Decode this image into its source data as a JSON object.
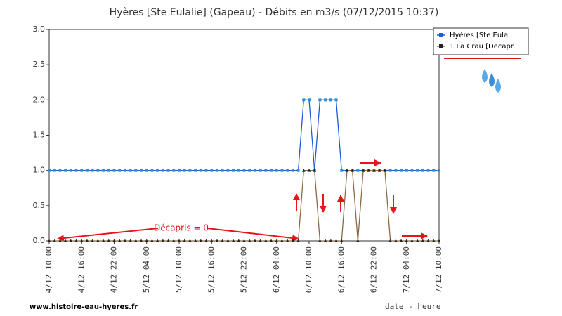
{
  "chart_data": {
    "type": "line",
    "title": "Hyères [Ste Eulalie] (Gapeau) - Débits en m3/s (07/12/2015 10:37)",
    "x_label": "date - heure",
    "source": "www.histoire-eau-hyeres.fr",
    "annotation": "Décapris = 0",
    "x": [
      "4/12 10:00",
      "4/12 11:00",
      "4/12 12:00",
      "4/12 13:00",
      "4/12 14:00",
      "4/12 15:00",
      "4/12 16:00",
      "4/12 17:00",
      "4/12 18:00",
      "4/12 19:00",
      "4/12 20:00",
      "4/12 21:00",
      "4/12 22:00",
      "4/12 23:00",
      "5/12 00:00",
      "5/12 01:00",
      "5/12 02:00",
      "5/12 03:00",
      "5/12 04:00",
      "5/12 05:00",
      "5/12 06:00",
      "5/12 07:00",
      "5/12 08:00",
      "5/12 09:00",
      "5/12 10:00",
      "5/12 11:00",
      "5/12 12:00",
      "5/12 13:00",
      "5/12 14:00",
      "5/12 15:00",
      "5/12 16:00",
      "5/12 17:00",
      "5/12 18:00",
      "5/12 19:00",
      "5/12 20:00",
      "5/12 21:00",
      "5/12 22:00",
      "5/12 23:00",
      "6/12 00:00",
      "6/12 01:00",
      "6/12 02:00",
      "6/12 03:00",
      "6/12 04:00",
      "6/12 05:00",
      "6/12 06:00",
      "6/12 07:00",
      "6/12 08:00",
      "6/12 09:00",
      "6/12 10:00",
      "6/12 11:00",
      "6/12 12:00",
      "6/12 13:00",
      "6/12 14:00",
      "6/12 15:00",
      "6/12 16:00",
      "6/12 17:00",
      "6/12 18:00",
      "6/12 19:00",
      "6/12 20:00",
      "6/12 21:00",
      "6/12 22:00",
      "6/12 23:00",
      "7/12 00:00",
      "7/12 01:00",
      "7/12 02:00",
      "7/12 03:00",
      "7/12 04:00",
      "7/12 05:00",
      "7/12 06:00",
      "7/12 07:00",
      "7/12 08:00",
      "7/12 09:00",
      "7/12 10:00"
    ],
    "series": [
      {
        "name": "Hyères [Ste Eulal",
        "color": "#1e5bd8",
        "marker_color": "#2a8fcf",
        "values": [
          1,
          1,
          1,
          1,
          1,
          1,
          1,
          1,
          1,
          1,
          1,
          1,
          1,
          1,
          1,
          1,
          1,
          1,
          1,
          1,
          1,
          1,
          1,
          1,
          1,
          1,
          1,
          1,
          1,
          1,
          1,
          1,
          1,
          1,
          1,
          1,
          1,
          1,
          1,
          1,
          1,
          1,
          1,
          1,
          1,
          1,
          1,
          2,
          2,
          1,
          2,
          2,
          2,
          2,
          1,
          1,
          1,
          1,
          1,
          1,
          1,
          1,
          1,
          1,
          1,
          1,
          1,
          1,
          1,
          1,
          1,
          1,
          1
        ]
      },
      {
        "name": "1 La Crau [Decapr.",
        "color": "#8b6a45",
        "marker_color": "#222222",
        "values": [
          0,
          0,
          0,
          0,
          0,
          0,
          0,
          0,
          0,
          0,
          0,
          0,
          0,
          0,
          0,
          0,
          0,
          0,
          0,
          0,
          0,
          0,
          0,
          0,
          0,
          0,
          0,
          0,
          0,
          0,
          0,
          0,
          0,
          0,
          0,
          0,
          0,
          0,
          0,
          0,
          0,
          0,
          0,
          0,
          0,
          0,
          0,
          1,
          1,
          1,
          0,
          0,
          0,
          0,
          0,
          1,
          1,
          0,
          1,
          1,
          1,
          1,
          1,
          0,
          0,
          0,
          0,
          0,
          0,
          0,
          0,
          0,
          0
        ]
      }
    ],
    "xlim": [
      "4/12 10:00",
      "7/12 10:00"
    ],
    "xticks": [
      "4/12 10:00",
      "4/12 16:00",
      "4/12 22:00",
      "5/12 04:00",
      "5/12 10:00",
      "5/12 16:00",
      "5/12 22:00",
      "6/12 04:00",
      "6/12 10:00",
      "6/12 16:00",
      "6/12 22:00",
      "7/12 04:00",
      "7/12 10:00"
    ],
    "ylim": [
      0,
      3
    ],
    "yticks": [
      {
        "value": 0,
        "label": "0.0"
      },
      0.5,
      {
        "value": 1,
        "label": "1.0"
      },
      1.5,
      {
        "value": 2,
        "label": "2.0"
      },
      2.5,
      {
        "value": 3,
        "label": "3.0"
      }
    ],
    "grid": false
  }
}
